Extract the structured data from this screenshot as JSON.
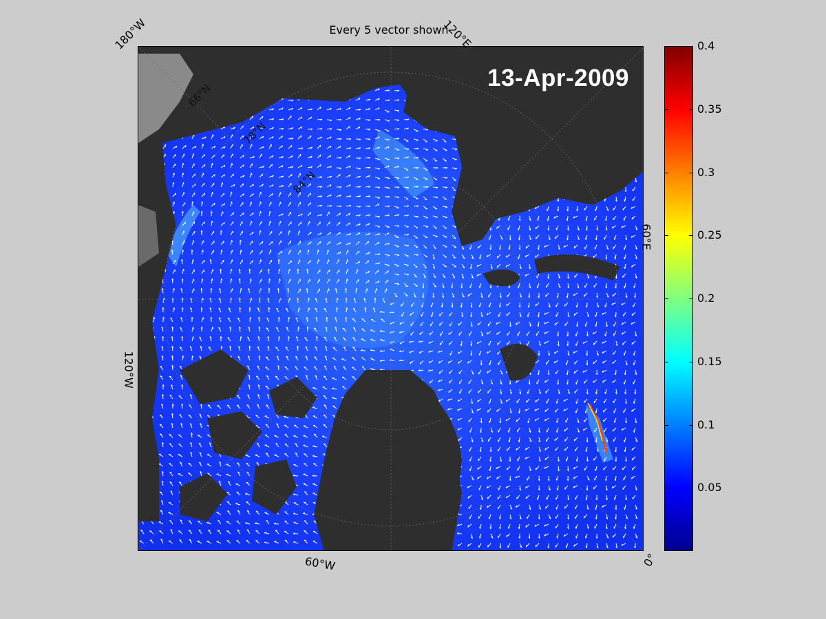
{
  "title": "Every 5 vector shown",
  "date": "13-Apr-2009",
  "longitude_labels": {
    "w180": "180°W",
    "e120": "120°E",
    "e60": "60°E",
    "w120": "120°W",
    "w60": "60°W",
    "zero": "0°"
  },
  "latitude_labels": {
    "n66": "66°N",
    "n78": "78°N",
    "n84": "84°N"
  },
  "colorbar": {
    "min": 0,
    "max": 0.4,
    "ticks": [
      "0.4",
      "0.35",
      "0.3",
      "0.25",
      "0.2",
      "0.15",
      "0.1",
      "0.05"
    ],
    "tick_values": [
      0.4,
      0.35,
      0.3,
      0.25,
      0.2,
      0.15,
      0.1,
      0.05
    ],
    "colormap": "jet"
  },
  "colors": {
    "figure_background": "#cccccc",
    "land": "#2e2e2e",
    "ice_low": "#1e3cff",
    "ice_mid": "#2f7fff",
    "vectors": "#ffffff"
  }
}
